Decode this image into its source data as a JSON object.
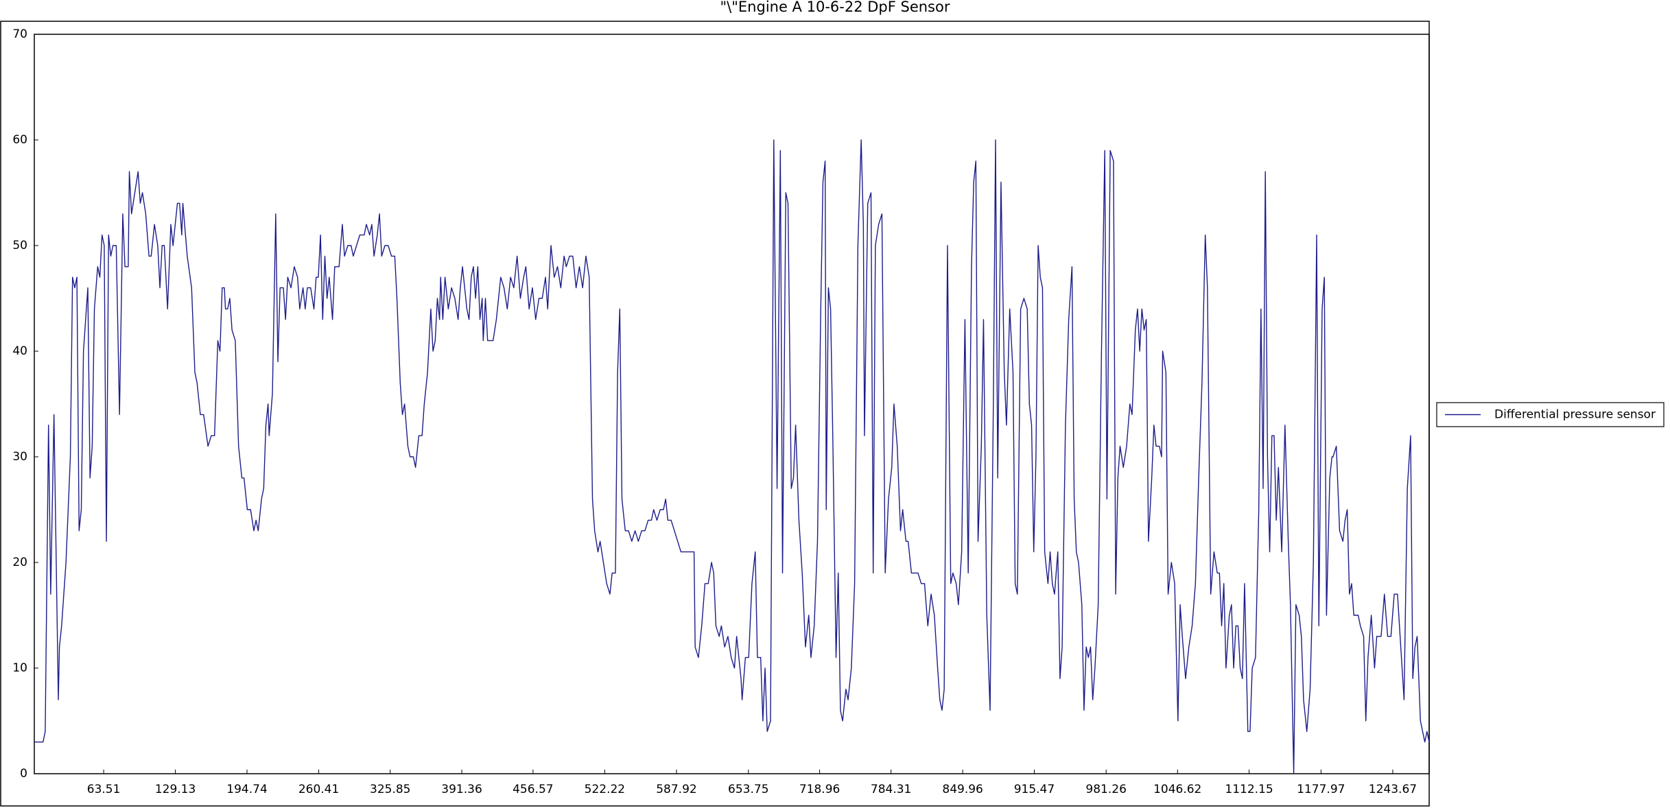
{
  "chart_data": {
    "type": "line",
    "title": "\"\\\"Engine A 10-6-22 DpF Sensor",
    "x": [
      0,
      8,
      10,
      13,
      15,
      18,
      22,
      23,
      25,
      29,
      33,
      35,
      37,
      39,
      41,
      43,
      45,
      49,
      51,
      53,
      55,
      58,
      60,
      62,
      64,
      66,
      68,
      70,
      72,
      75,
      78,
      81,
      83,
      86,
      87,
      89,
      92,
      95,
      97,
      99,
      102,
      105,
      107,
      110,
      113,
      115,
      117,
      119,
      122,
      125,
      127,
      131,
      133,
      135,
      136,
      140,
      144,
      147,
      149,
      152,
      155,
      159,
      162,
      165,
      168,
      170,
      172,
      174,
      175,
      177,
      179,
      181,
      184,
      187,
      190,
      192,
      195,
      198,
      201,
      203,
      205,
      208,
      210,
      212,
      214,
      215,
      218,
      221,
      223,
      225,
      228,
      230,
      232,
      235,
      238,
      241,
      243,
      246,
      248,
      250,
      253,
      256,
      258,
      260,
      262,
      264,
      266,
      268,
      270,
      273,
      275,
      279,
      282,
      284,
      287,
      290,
      292,
      295,
      298,
      302,
      304,
      307,
      309,
      311,
      314,
      316,
      318,
      321,
      324,
      327,
      330,
      332,
      335,
      337,
      339,
      342,
      344,
      347,
      349,
      352,
      355,
      357,
      360,
      363,
      365,
      367,
      369,
      371,
      372,
      374,
      376,
      379,
      382,
      385,
      388,
      390,
      392,
      394,
      396,
      398,
      400,
      402,
      404,
      406,
      408,
      410,
      411,
      413,
      415,
      417,
      420,
      423,
      427,
      430,
      433,
      436,
      439,
      442,
      445,
      448,
      450,
      453,
      456,
      459,
      462,
      465,
      468,
      470,
      473,
      476,
      479,
      482,
      485,
      487,
      490,
      493,
      496,
      499,
      502,
      505,
      508,
      511,
      513,
      516,
      518,
      521,
      524,
      527,
      529,
      532,
      534,
      536,
      538,
      541,
      544,
      547,
      550,
      553,
      556,
      559,
      562,
      565,
      567,
      570,
      573,
      576,
      578,
      580,
      583,
      586,
      589,
      592,
      595,
      600,
      604,
      605,
      608,
      611,
      614,
      617,
      620,
      622,
      624,
      627,
      629,
      632,
      635,
      638,
      641,
      643,
      645,
      647,
      648,
      651,
      654,
      657,
      660,
      662,
      665,
      667,
      669,
      671,
      674,
      677,
      680,
      683,
      685,
      688,
      690,
      693,
      695,
      697,
      700,
      703,
      706,
      709,
      711,
      714,
      717,
      720,
      722,
      724,
      725,
      727,
      729,
      731,
      734,
      736,
      738,
      740,
      743,
      745,
      748,
      751,
      754,
      757,
      759,
      760,
      763,
      766,
      768,
      770,
      773,
      776,
      779,
      782,
      785,
      787,
      790,
      793,
      795,
      798,
      800,
      803,
      806,
      809,
      812,
      815,
      818,
      821,
      824,
      827,
      829,
      831,
      833,
      836,
      839,
      841,
      844,
      846,
      849,
      852,
      855,
      858,
      860,
      862,
      864,
      867,
      869,
      872,
      875,
      878,
      880,
      882,
      885,
      888,
      890,
      893,
      896,
      898,
      900,
      903,
      906,
      909,
      911,
      913,
      915,
      917,
      919,
      921,
      923,
      925,
      928,
      930,
      932,
      934,
      937,
      939,
      941,
      944,
      947,
      950,
      952,
      954,
      956,
      959,
      961,
      963,
      965,
      967,
      969,
      971,
      974,
      977,
      980,
      982,
      985,
      988,
      990,
      992,
      994,
      997,
      1000,
      1003,
      1005,
      1008,
      1010,
      1012,
      1014,
      1016,
      1018,
      1020,
      1023,
      1025,
      1027,
      1030,
      1032,
      1033,
      1036,
      1038,
      1041,
      1044,
      1047,
      1049,
      1051,
      1054,
      1057,
      1060,
      1063,
      1066,
      1069,
      1072,
      1074,
      1077,
      1080,
      1083,
      1085,
      1087,
      1089,
      1091,
      1094,
      1096,
      1098,
      1100,
      1102,
      1104,
      1106,
      1108,
      1111,
      1113,
      1115,
      1118,
      1121,
      1123,
      1125,
      1127,
      1129,
      1131,
      1133,
      1135,
      1137,
      1139,
      1142,
      1145,
      1148,
      1150,
      1153,
      1155,
      1158,
      1160,
      1162,
      1165,
      1168,
      1171,
      1174,
      1176,
      1179,
      1181,
      1183,
      1186,
      1188,
      1189,
      1192,
      1195,
      1198,
      1200,
      1202,
      1204,
      1206,
      1208,
      1212,
      1214,
      1217,
      1219,
      1221,
      1224,
      1227,
      1229,
      1233,
      1236,
      1239,
      1242,
      1245,
      1248,
      1251,
      1254,
      1257,
      1260,
      1262,
      1264,
      1266,
      1269,
      1271,
      1273,
      1275,
      1277
    ],
    "series": [
      {
        "name": "Differential pressure sensor",
        "color": "#1c1c8a",
        "values": [
          3,
          3,
          4,
          33,
          17,
          34,
          7,
          12,
          14,
          20,
          30,
          47,
          46,
          47,
          23,
          25,
          40,
          46,
          28,
          31,
          44,
          48,
          47,
          51,
          50,
          22,
          51,
          49,
          50,
          50,
          34,
          53,
          48,
          48,
          57,
          53,
          55,
          57,
          54,
          55,
          53,
          49,
          49,
          52,
          50,
          46,
          50,
          50,
          44,
          52,
          50,
          54,
          54,
          51,
          54,
          49,
          46,
          38,
          37,
          34,
          34,
          31,
          32,
          32,
          41,
          40,
          46,
          46,
          44,
          44,
          45,
          42,
          41,
          31,
          28,
          28,
          25,
          25,
          23,
          24,
          23,
          26,
          27,
          33,
          35,
          32,
          36,
          53,
          39,
          46,
          46,
          43,
          47,
          46,
          48,
          47,
          44,
          46,
          44,
          46,
          46,
          44,
          47,
          47,
          51,
          43,
          49,
          45,
          47,
          43,
          48,
          48,
          52,
          49,
          50,
          50,
          49,
          50,
          51,
          51,
          52,
          51,
          52,
          49,
          51,
          53,
          49,
          50,
          50,
          49,
          49,
          45,
          37,
          34,
          35,
          31,
          30,
          30,
          29,
          32,
          32,
          35,
          38,
          44,
          40,
          41,
          45,
          43,
          47,
          43,
          47,
          44,
          46,
          45,
          43,
          46,
          48,
          46,
          44,
          43,
          47,
          48,
          45,
          48,
          43,
          45,
          41,
          45,
          41,
          41,
          41,
          43,
          47,
          46,
          44,
          47,
          46,
          49,
          45,
          47,
          48,
          44,
          46,
          43,
          45,
          45,
          47,
          44,
          50,
          47,
          48,
          46,
          49,
          48,
          49,
          49,
          46,
          48,
          46,
          49,
          47,
          26,
          23,
          21,
          22,
          20,
          18,
          17,
          19,
          19,
          38,
          44,
          26,
          23,
          23,
          22,
          23,
          22,
          23,
          23,
          24,
          24,
          25,
          24,
          25,
          25,
          26,
          24,
          24,
          23,
          22,
          21,
          21,
          21,
          21,
          12,
          11,
          14,
          18,
          18,
          20,
          19,
          14,
          13,
          14,
          12,
          13,
          11,
          10,
          13,
          11,
          9,
          7,
          11,
          11,
          18,
          21,
          11,
          11,
          5,
          10,
          4,
          5,
          60,
          27,
          59,
          19,
          55,
          54,
          27,
          28,
          33,
          24,
          19,
          12,
          15,
          11,
          14,
          22,
          44,
          56,
          58,
          25,
          46,
          44,
          32,
          11,
          19,
          6,
          5,
          8,
          7,
          10,
          18,
          50,
          60,
          52,
          32,
          54,
          55,
          19,
          50,
          52,
          53,
          19,
          26,
          29,
          35,
          31,
          23,
          25,
          22,
          22,
          19,
          19,
          19,
          18,
          18,
          14,
          17,
          15,
          10,
          7,
          6,
          8,
          50,
          18,
          19,
          18,
          16,
          21,
          43,
          19,
          48,
          56,
          58,
          22,
          31,
          43,
          15,
          6,
          35,
          60,
          28,
          56,
          38,
          33,
          44,
          38,
          18,
          17,
          44,
          45,
          44,
          35,
          33,
          21,
          30,
          50,
          47,
          46,
          21,
          18,
          21,
          18,
          17,
          21,
          9,
          12,
          33,
          43,
          48,
          26,
          21,
          20,
          16,
          6,
          12,
          11,
          12,
          7,
          10,
          16,
          40,
          59,
          26,
          59,
          58,
          17,
          28,
          31,
          29,
          31,
          35,
          34,
          42,
          44,
          40,
          44,
          42,
          43,
          22,
          28,
          33,
          31,
          31,
          30,
          40,
          38,
          17,
          20,
          18,
          5,
          16,
          13,
          9,
          12,
          14,
          18,
          28,
          37,
          51,
          46,
          17,
          21,
          19,
          19,
          14,
          18,
          10,
          15,
          16,
          10,
          14,
          14,
          10,
          9,
          18,
          4,
          4,
          10,
          11,
          25,
          44,
          27,
          57,
          30,
          21,
          32,
          32,
          24,
          29,
          21,
          33,
          22,
          16,
          0,
          16,
          15,
          13,
          7,
          4,
          8,
          20,
          51,
          14,
          44,
          47,
          15,
          28,
          30,
          30,
          31,
          23,
          22,
          24,
          25,
          17,
          18,
          15,
          15,
          14,
          13,
          5,
          11,
          15,
          10,
          13,
          13,
          17,
          13,
          13,
          17,
          17,
          12,
          7,
          27,
          32,
          9,
          12,
          13,
          5,
          4,
          3,
          4,
          3
        ]
      }
    ],
    "xlim": [
      0,
      1277
    ],
    "xticks": [
      63.51,
      129.13,
      194.74,
      260.41,
      325.85,
      391.36,
      456.57,
      522.22,
      587.92,
      653.75,
      718.96,
      784.31,
      849.96,
      915.47,
      981.26,
      1046.62,
      1112.15,
      1177.97,
      1243.67
    ],
    "ylim": [
      0,
      70
    ],
    "yticks": [
      0,
      10,
      20,
      30,
      40,
      50,
      60,
      70
    ],
    "grid": false,
    "legend": "right"
  }
}
